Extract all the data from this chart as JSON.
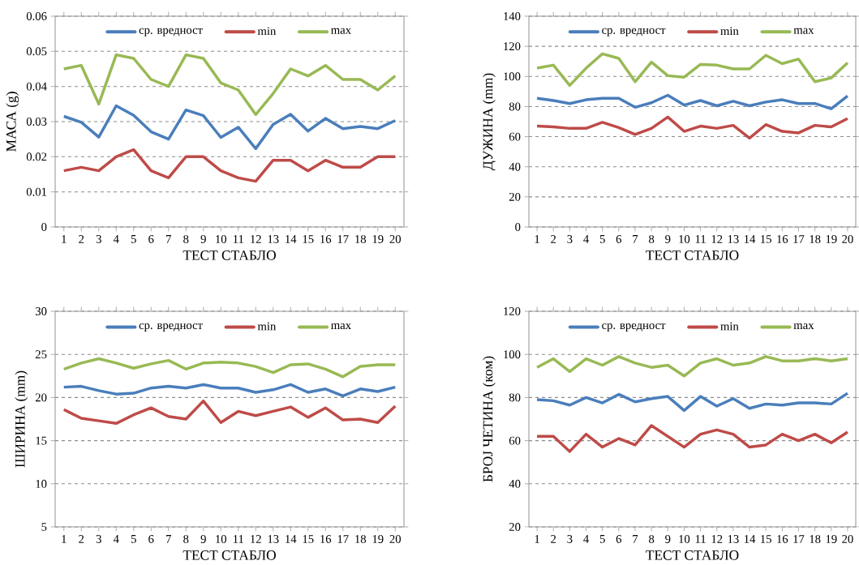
{
  "chart_data": [
    {
      "type": "line",
      "xlabel": "ТЕСТ СТАБЛО",
      "ylabel": "МАСА (g)",
      "categories": [
        "1",
        "2",
        "3",
        "4",
        "5",
        "6",
        "7",
        "8",
        "9",
        "10",
        "11",
        "12",
        "13",
        "14",
        "15",
        "16",
        "17",
        "18",
        "19",
        "20"
      ],
      "ylim": [
        0,
        0.06
      ],
      "yticks": [
        0,
        0.01,
        0.02,
        0.03,
        0.04,
        0.05,
        0.06
      ],
      "grid": "y",
      "legend": "top",
      "series": [
        {
          "name": "ср. вредност",
          "color": "#4a7ebb",
          "values": [
            0.0315,
            0.0298,
            0.0256,
            0.0345,
            0.0318,
            0.0271,
            0.025,
            0.0333,
            0.0317,
            0.0255,
            0.0284,
            0.0223,
            0.0292,
            0.0321,
            0.0273,
            0.0309,
            0.028,
            0.0286,
            0.028,
            0.0303
          ]
        },
        {
          "name": "min",
          "color": "#be4b48",
          "values": [
            0.016,
            0.017,
            0.016,
            0.02,
            0.022,
            0.016,
            0.014,
            0.02,
            0.02,
            0.016,
            0.014,
            0.013,
            0.019,
            0.019,
            0.016,
            0.019,
            0.017,
            0.017,
            0.02,
            0.02
          ]
        },
        {
          "name": "max",
          "color": "#98b954",
          "values": [
            0.045,
            0.046,
            0.035,
            0.049,
            0.048,
            0.042,
            0.04,
            0.049,
            0.048,
            0.041,
            0.039,
            0.032,
            0.038,
            0.045,
            0.043,
            0.046,
            0.042,
            0.042,
            0.039,
            0.043
          ]
        }
      ]
    },
    {
      "type": "line",
      "xlabel": "ТЕСТ СТАБЛО",
      "ylabel": "ДУЖИНА (mm)",
      "categories": [
        "1",
        "2",
        "3",
        "4",
        "5",
        "6",
        "7",
        "8",
        "9",
        "10",
        "11",
        "12",
        "13",
        "14",
        "15",
        "16",
        "17",
        "18",
        "19",
        "20"
      ],
      "ylim": [
        0,
        140
      ],
      "yticks": [
        0,
        20,
        40,
        60,
        80,
        100,
        120,
        140
      ],
      "grid": "y",
      "legend": "top",
      "series": [
        {
          "name": "ср. вредност",
          "color": "#4a7ebb",
          "values": [
            85.5,
            84,
            82,
            84.5,
            85.5,
            85.5,
            79.5,
            82.5,
            87.5,
            81,
            84,
            80.5,
            83.5,
            80.5,
            83,
            84.5,
            82,
            82,
            78.5,
            87
          ]
        },
        {
          "name": "min",
          "color": "#be4b48",
          "values": [
            67,
            66.5,
            65.5,
            65.5,
            69.5,
            66,
            61.5,
            65.5,
            73,
            63.5,
            67,
            65.5,
            67.5,
            59,
            68,
            63.5,
            62.5,
            67.5,
            66.5,
            72
          ]
        },
        {
          "name": "max",
          "color": "#98b954",
          "values": [
            105.5,
            107.5,
            94,
            105.5,
            115,
            112,
            96.5,
            109.5,
            100.5,
            99.5,
            108,
            107.5,
            105,
            105,
            114,
            108.5,
            111.5,
            96.5,
            99,
            109
          ]
        }
      ]
    },
    {
      "type": "line",
      "xlabel": "ТЕСТ СТАБЛО",
      "ylabel": "ШИРИНА (mm)",
      "categories": [
        "1",
        "2",
        "3",
        "4",
        "5",
        "6",
        "7",
        "8",
        "9",
        "10",
        "11",
        "12",
        "13",
        "14",
        "15",
        "16",
        "17",
        "18",
        "19",
        "20"
      ],
      "ylim": [
        5,
        30
      ],
      "yticks": [
        5,
        10,
        15,
        20,
        25,
        30
      ],
      "grid": "y",
      "legend": "top",
      "series": [
        {
          "name": "ср. вредност",
          "color": "#4a7ebb",
          "values": [
            21.2,
            21.3,
            20.8,
            20.4,
            20.5,
            21.1,
            21.3,
            21.1,
            21.5,
            21.1,
            21.1,
            20.6,
            20.9,
            21.5,
            20.6,
            21.0,
            20.2,
            21.0,
            20.7,
            21.2
          ]
        },
        {
          "name": "min",
          "color": "#be4b48",
          "values": [
            18.6,
            17.6,
            17.3,
            17.0,
            18.0,
            18.8,
            17.8,
            17.5,
            19.6,
            17.1,
            18.4,
            17.9,
            18.4,
            18.9,
            17.7,
            18.8,
            17.4,
            17.5,
            17.1,
            19.0
          ]
        },
        {
          "name": "max",
          "color": "#98b954",
          "values": [
            23.3,
            24.0,
            24.5,
            24.0,
            23.4,
            23.9,
            24.3,
            23.3,
            24.0,
            24.1,
            24.0,
            23.6,
            22.9,
            23.8,
            23.9,
            23.3,
            22.4,
            23.6,
            23.8,
            23.8
          ]
        }
      ]
    },
    {
      "type": "line",
      "xlabel": "ТЕСТ СТАБЛО",
      "ylabel": "БРОЈ ЧЕТИНА (ком)",
      "categories": [
        "1",
        "2",
        "3",
        "4",
        "5",
        "6",
        "7",
        "8",
        "9",
        "10",
        "11",
        "12",
        "13",
        "14",
        "15",
        "16",
        "17",
        "18",
        "19",
        "20"
      ],
      "ylim": [
        20,
        120
      ],
      "yticks": [
        20,
        40,
        60,
        80,
        100,
        120
      ],
      "grid": "y",
      "legend": "top",
      "series": [
        {
          "name": "ср. вредност",
          "color": "#4a7ebb",
          "values": [
            79,
            78.5,
            76.5,
            80,
            77.5,
            81.5,
            78,
            79.5,
            80.5,
            74,
            80.5,
            76,
            79.5,
            75,
            77,
            76.5,
            77.5,
            77.5,
            77,
            82
          ]
        },
        {
          "name": "min",
          "color": "#be4b48",
          "values": [
            62,
            62,
            55,
            63,
            57,
            61,
            58,
            67,
            62,
            57,
            63,
            65,
            63,
            57,
            58,
            63,
            60,
            63,
            59,
            64
          ]
        },
        {
          "name": "max",
          "color": "#98b954",
          "values": [
            94,
            98,
            92,
            98,
            95,
            99,
            96,
            94,
            95,
            90,
            96,
            98,
            95,
            96,
            99,
            97,
            97,
            98,
            97,
            98
          ]
        }
      ]
    }
  ]
}
